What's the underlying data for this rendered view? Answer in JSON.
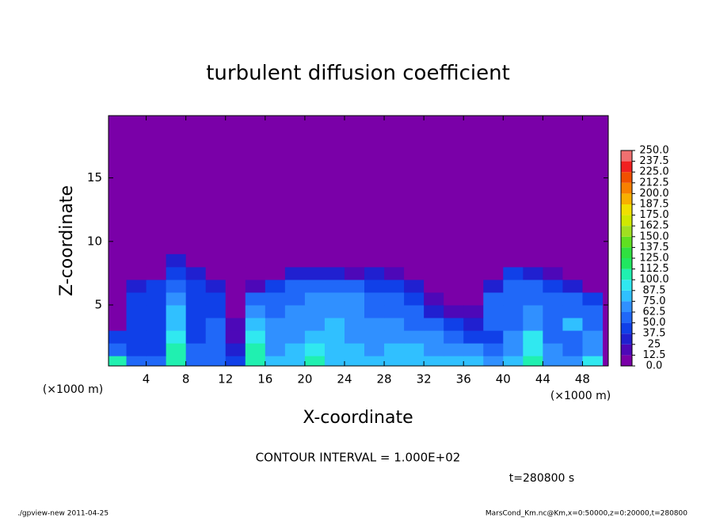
{
  "chart_data": {
    "type": "contour",
    "title": "turbulent diffusion coefficient",
    "x_label": "X-coordinate",
    "y_label": "Z-coordinate",
    "x_unit": "(×1000 m)",
    "annotation": "CONTOUR INTERVAL = 1.000E+02",
    "time_label": "t=280800 s",
    "footer_left": "./gpview-new  2011-04-25",
    "footer_right": "MarsCond_Km.nc@Km,x=0:50000,z=0:20000,t=280800",
    "xlim": [
      0.2,
      50.6
    ],
    "ylim": [
      0.2,
      19.9
    ],
    "xticks": [
      4,
      8,
      12,
      16,
      20,
      24,
      28,
      32,
      36,
      40,
      44,
      48
    ],
    "yticks": [
      5,
      10,
      15
    ],
    "x": [
      1,
      3,
      5,
      7,
      9,
      11,
      13,
      15,
      17,
      19,
      21,
      23,
      25,
      27,
      29,
      31,
      33,
      35,
      37,
      39,
      41,
      43,
      45,
      47,
      49
    ],
    "y": [
      0.5,
      1.5,
      2.5,
      3.5,
      4.5,
      5.5,
      6.5,
      7.5,
      8.5
    ],
    "values": [
      [
        100,
        50,
        50,
        100,
        55,
        55,
        40,
        100,
        75,
        80,
        100,
        80,
        80,
        75,
        75,
        80,
        75,
        80,
        75,
        70,
        75,
        100,
        70,
        65,
        90
      ],
      [
        60,
        45,
        45,
        100,
        50,
        50,
        30,
        100,
        70,
        75,
        90,
        80,
        75,
        70,
        75,
        75,
        70,
        70,
        65,
        55,
        70,
        95,
        65,
        60,
        70
      ],
      [
        40,
        45,
        40,
        90,
        45,
        50,
        20,
        90,
        70,
        70,
        75,
        80,
        70,
        70,
        65,
        70,
        65,
        60,
        45,
        40,
        65,
        90,
        60,
        60,
        65
      ],
      [
        0,
        45,
        40,
        80,
        45,
        50,
        15,
        85,
        65,
        65,
        70,
        75,
        70,
        65,
        65,
        60,
        55,
        40,
        25,
        50,
        60,
        70,
        55,
        75,
        60
      ],
      [
        0,
        45,
        40,
        75,
        45,
        45,
        10,
        70,
        60,
        65,
        70,
        70,
        65,
        60,
        60,
        50,
        30,
        20,
        15,
        55,
        60,
        65,
        55,
        55,
        55
      ],
      [
        0,
        40,
        40,
        70,
        45,
        40,
        5,
        50,
        55,
        60,
        65,
        65,
        65,
        60,
        55,
        40,
        20,
        10,
        5,
        50,
        55,
        60,
        55,
        50,
        45
      ],
      [
        0,
        30,
        40,
        60,
        45,
        35,
        0,
        20,
        40,
        55,
        60,
        55,
        50,
        45,
        40,
        25,
        5,
        0,
        0,
        35,
        50,
        55,
        45,
        30,
        10
      ],
      [
        0,
        0,
        10,
        45,
        30,
        10,
        0,
        0,
        10,
        25,
        35,
        30,
        20,
        25,
        15,
        5,
        0,
        0,
        0,
        10,
        40,
        30,
        15,
        0,
        0
      ],
      [
        0,
        0,
        0,
        30,
        10,
        0,
        0,
        0,
        0,
        0,
        5,
        0,
        0,
        0,
        0,
        0,
        0,
        0,
        0,
        0,
        5,
        0,
        0,
        0,
        0
      ]
    ],
    "colorbar": {
      "levels": [
        {
          "value": 0,
          "label": "0.0"
        },
        12.5,
        25,
        37.5,
        {
          "value": 50,
          "label": "50.0"
        },
        62.5,
        {
          "value": 75,
          "label": "75.0"
        },
        87.5,
        {
          "value": 100,
          "label": "100.0"
        },
        112.5,
        {
          "value": 125,
          "label": "125.0"
        },
        137.5,
        {
          "value": 150,
          "label": "150.0"
        },
        162.5,
        {
          "value": 175,
          "label": "175.0"
        },
        187.5,
        {
          "value": 200,
          "label": "200.0"
        },
        212.5,
        {
          "value": 225,
          "label": "225.0"
        },
        237.5,
        {
          "value": 250,
          "label": "250.0"
        }
      ],
      "colors": [
        "#7a00a8",
        "#4d08b8",
        "#2020d0",
        "#1040e8",
        "#2068f8",
        "#3090ff",
        "#30c0ff",
        "#30e8f0",
        "#20f0b0",
        "#20e860",
        "#30e040",
        "#60e020",
        "#a0e020",
        "#d0e800",
        "#f0e000",
        "#f8b000",
        "#f88000",
        "#f05000",
        "#f02020",
        "#f07070"
      ]
    }
  }
}
